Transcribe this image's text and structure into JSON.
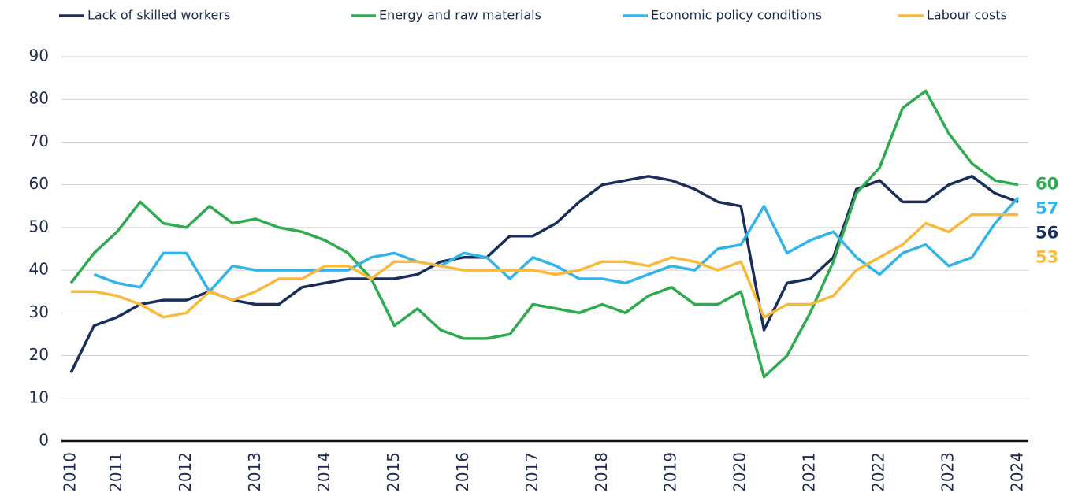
{
  "chart_data": {
    "type": "line",
    "categories": [
      "2010",
      null,
      "2011",
      null,
      null,
      "2012",
      null,
      null,
      "2013",
      null,
      null,
      "2014",
      null,
      null,
      "2015",
      null,
      null,
      "2016",
      null,
      null,
      "2017",
      null,
      null,
      "2018",
      null,
      null,
      "2019",
      null,
      null,
      "2020",
      null,
      null,
      "2021",
      null,
      null,
      "2022",
      null,
      null,
      "2023",
      null,
      null,
      "2024"
    ],
    "series": [
      {
        "name": "Lack of skilled workers",
        "color": "#1a2e5a",
        "values": [
          16,
          27,
          29,
          32,
          33,
          33,
          35,
          33,
          32,
          32,
          36,
          37,
          38,
          38,
          38,
          39,
          42,
          43,
          43,
          48,
          48,
          51,
          56,
          60,
          61,
          62,
          61,
          59,
          56,
          55,
          26,
          37,
          38,
          43,
          59,
          61,
          56,
          56,
          60,
          62,
          58,
          56
        ]
      },
      {
        "name": "Energy and raw materials",
        "color": "#2eaa4f",
        "values": [
          37,
          44,
          49,
          56,
          51,
          50,
          55,
          51,
          52,
          50,
          49,
          47,
          44,
          38,
          27,
          31,
          26,
          24,
          24,
          25,
          32,
          31,
          30,
          32,
          30,
          34,
          36,
          32,
          32,
          35,
          15,
          20,
          30,
          42,
          58,
          64,
          78,
          82,
          72,
          65,
          61,
          60
        ]
      },
      {
        "name": "Economic policy conditions",
        "color": "#33b4e8",
        "values": [
          null,
          39,
          37,
          36,
          44,
          44,
          35,
          41,
          40,
          40,
          40,
          40,
          40,
          43,
          44,
          42,
          41,
          44,
          43,
          38,
          43,
          41,
          38,
          38,
          37,
          39,
          41,
          40,
          45,
          46,
          55,
          44,
          47,
          49,
          43,
          39,
          44,
          46,
          41,
          43,
          51,
          57
        ]
      },
      {
        "name": "Labour costs",
        "color": "#f9b93c",
        "values": [
          35,
          35,
          34,
          32,
          29,
          30,
          35,
          33,
          35,
          38,
          38,
          41,
          41,
          38,
          42,
          42,
          41,
          40,
          40,
          40,
          40,
          39,
          40,
          42,
          42,
          41,
          43,
          42,
          40,
          42,
          29,
          32,
          32,
          34,
          40,
          43,
          46,
          51,
          49,
          53,
          53,
          53
        ]
      }
    ],
    "ylim": [
      0,
      90
    ],
    "yticks": [
      0,
      10,
      20,
      30,
      40,
      50,
      60,
      70,
      80,
      90
    ],
    "grid": true
  }
}
